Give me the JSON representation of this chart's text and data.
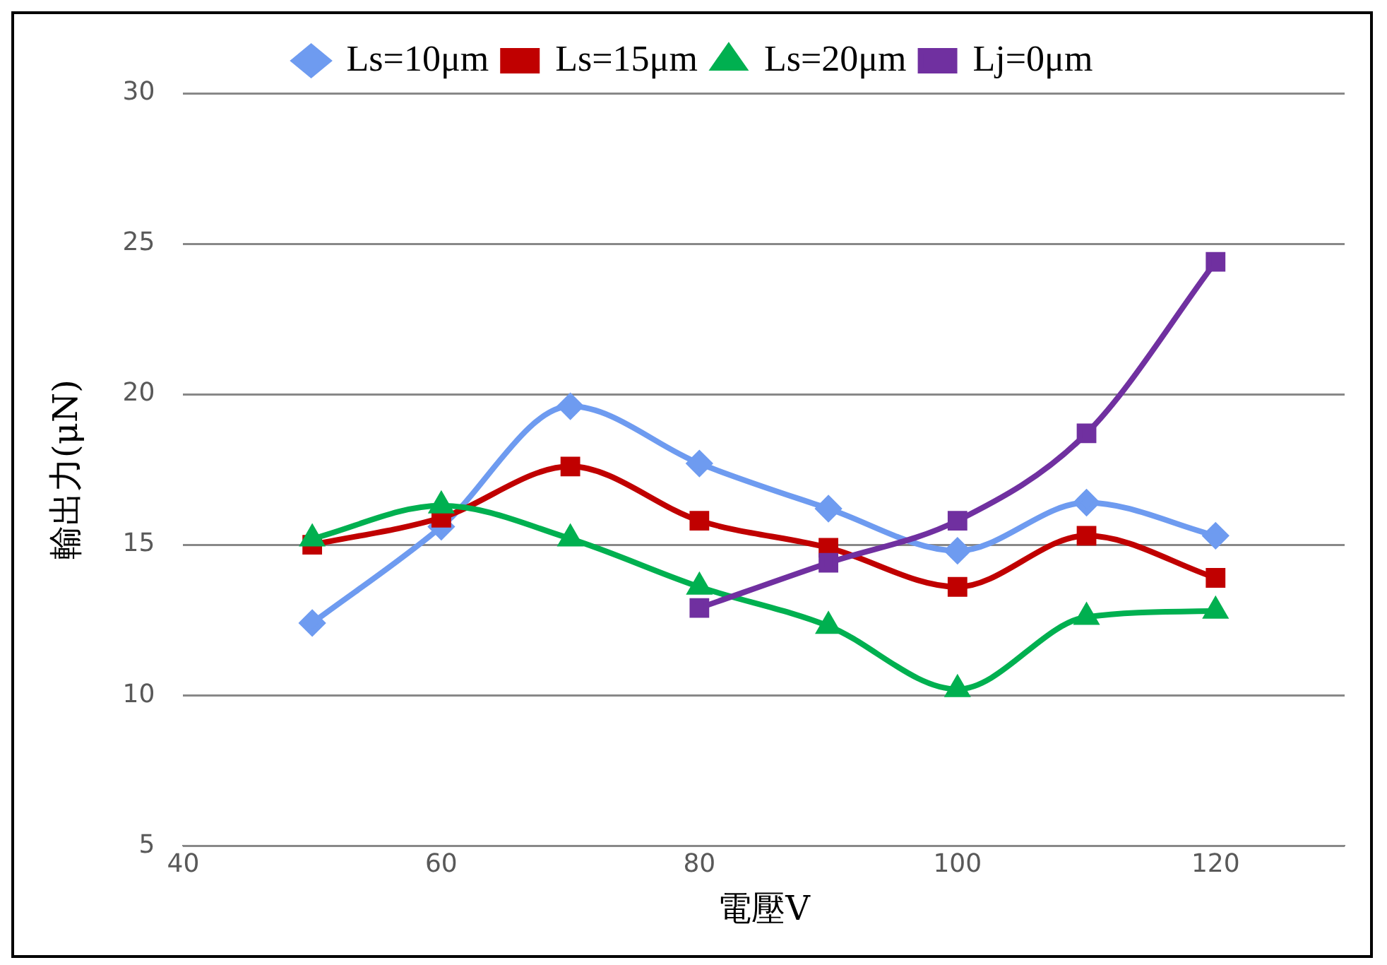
{
  "chart_data": {
    "type": "line",
    "xlabel": "電壓V",
    "ylabel": "輸出力(μN)",
    "x": [
      50,
      60,
      70,
      80,
      90,
      100,
      110,
      120
    ],
    "series": [
      {
        "name": "Ls=10μm",
        "color": "#6e9bf0",
        "marker": "diamond",
        "values": [
          12.4,
          15.6,
          19.6,
          17.7,
          16.2,
          14.8,
          16.4,
          15.3
        ]
      },
      {
        "name": "Ls=15μm",
        "color": "#c00000",
        "marker": "square",
        "values": [
          15.0,
          15.9,
          17.6,
          15.8,
          14.9,
          13.6,
          15.3,
          13.9
        ]
      },
      {
        "name": "Ls=20μm",
        "color": "#00b050",
        "marker": "triangle",
        "values": [
          15.2,
          16.3,
          15.2,
          13.6,
          12.3,
          10.2,
          12.6,
          12.8
        ]
      },
      {
        "name": "Lj=0μm",
        "color": "#7030a0",
        "marker": "square",
        "values": [
          null,
          null,
          null,
          12.9,
          14.4,
          15.8,
          18.7,
          24.4
        ]
      }
    ],
    "xlim": [
      40,
      130
    ],
    "xticks": [
      40,
      60,
      80,
      100,
      120
    ],
    "ylim": [
      5,
      30
    ],
    "yticks": [
      5,
      10,
      15,
      20,
      25,
      30
    ],
    "grid": "y",
    "legend": "top"
  }
}
